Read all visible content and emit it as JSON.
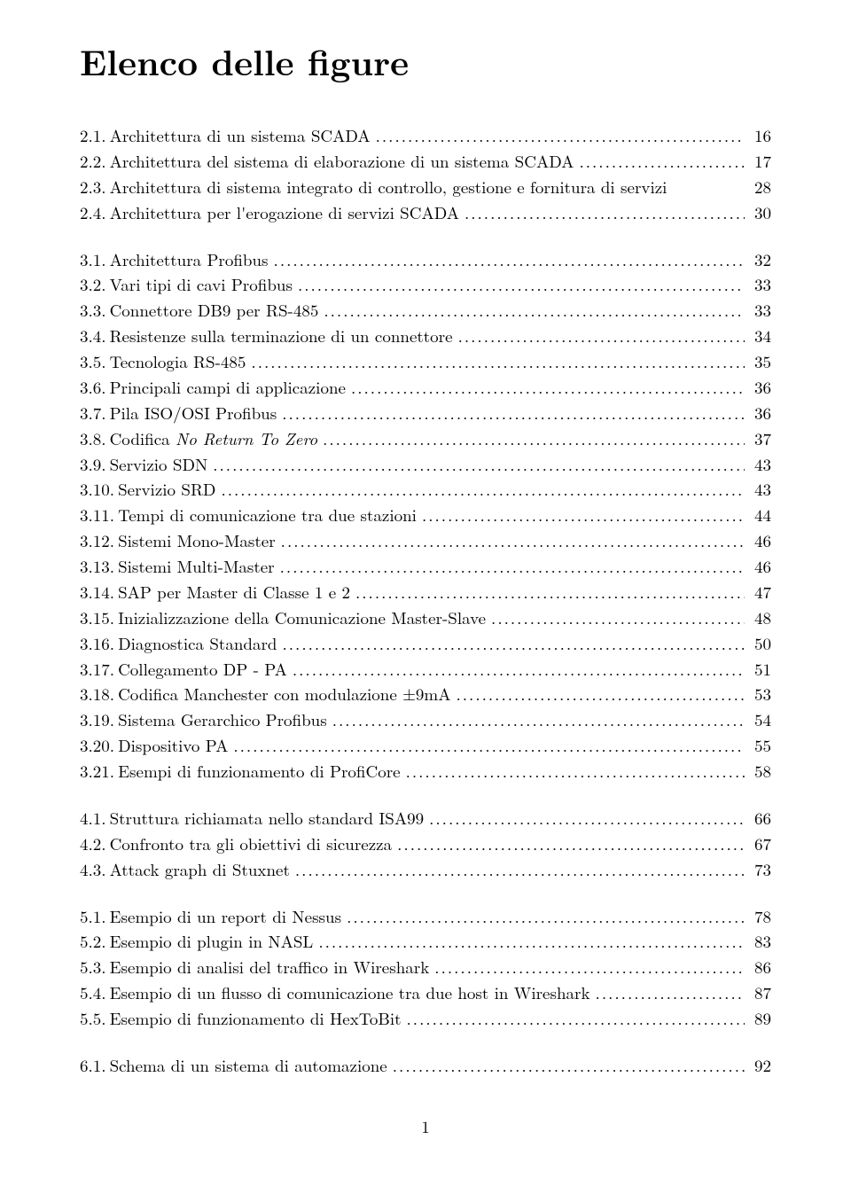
{
  "title": "Elenco delle figure",
  "footer": "1",
  "groups": [
    {
      "entries": [
        {
          "num": "2.1.",
          "label": "Architettura di un sistema SCADA",
          "page": "16"
        },
        {
          "num": "2.2.",
          "label": "Architettura del sistema di elaborazione di un sistema SCADA",
          "page": "17"
        },
        {
          "num": "2.3.",
          "label": "Architettura di sistema integrato di controllo, gestione e fornitura di servizi",
          "page": "28",
          "nodots": true
        },
        {
          "num": "2.4.",
          "label": "Architettura per l'erogazione di servizi SCADA",
          "page": "30"
        }
      ]
    },
    {
      "entries": [
        {
          "num": "3.1.",
          "label": "Architettura Profibus",
          "page": "32"
        },
        {
          "num": "3.2.",
          "label": "Vari tipi di cavi Profibus",
          "page": "33"
        },
        {
          "num": "3.3.",
          "label": "Connettore DB9 per RS-485",
          "page": "33"
        },
        {
          "num": "3.4.",
          "label": "Resistenze sulla terminazione di un connettore",
          "page": "34"
        },
        {
          "num": "3.5.",
          "label": "Tecnologia RS-485",
          "page": "35"
        },
        {
          "num": "3.6.",
          "label": "Principali campi di applicazione",
          "page": "36"
        },
        {
          "num": "3.7.",
          "label": "Pila ISO/OSI Profibus",
          "page": "36"
        },
        {
          "num": "3.8.",
          "label": "Codifica <span class=\"italic\">No Return To Zero</span>",
          "page": "37",
          "html": true
        },
        {
          "num": "3.9.",
          "label": "Servizio SDN",
          "page": "43"
        },
        {
          "num": "3.10.",
          "label": "Servizio SRD",
          "page": "43"
        },
        {
          "num": "3.11.",
          "label": "Tempi di comunicazione tra due stazioni",
          "page": "44"
        },
        {
          "num": "3.12.",
          "label": "Sistemi Mono-Master",
          "page": "46"
        },
        {
          "num": "3.13.",
          "label": "Sistemi Multi-Master",
          "page": "46"
        },
        {
          "num": "3.14.",
          "label": "SAP per Master di Classe 1 e 2",
          "page": "47"
        },
        {
          "num": "3.15.",
          "label": "Inizializzazione della Comunicazione Master-Slave",
          "page": "48"
        },
        {
          "num": "3.16.",
          "label": "Diagnostica Standard",
          "page": "50"
        },
        {
          "num": "3.17.",
          "label": "Collegamento DP - PA",
          "page": "51"
        },
        {
          "num": "3.18.",
          "label": "Codifica Manchester con modulazione ±9mA",
          "page": "53"
        },
        {
          "num": "3.19.",
          "label": "Sistema Gerarchico Profibus",
          "page": "54"
        },
        {
          "num": "3.20.",
          "label": "Dispositivo PA",
          "page": "55"
        },
        {
          "num": "3.21.",
          "label": "Esempi di funzionamento di ProfiCore",
          "page": "58"
        }
      ]
    },
    {
      "entries": [
        {
          "num": "4.1.",
          "label": "Struttura richiamata nello standard ISA99",
          "page": "66"
        },
        {
          "num": "4.2.",
          "label": "Confronto tra gli obiettivi di sicurezza",
          "page": "67"
        },
        {
          "num": "4.3.",
          "label": "Attack graph di Stuxnet",
          "page": "73"
        }
      ]
    },
    {
      "entries": [
        {
          "num": "5.1.",
          "label": "Esempio di un report di Nessus",
          "page": "78"
        },
        {
          "num": "5.2.",
          "label": "Esempio di plugin in NASL",
          "page": "83"
        },
        {
          "num": "5.3.",
          "label": "Esempio di analisi del traffico in Wireshark",
          "page": "86"
        },
        {
          "num": "5.4.",
          "label": "Esempio di un flusso di comunicazione tra due host in Wireshark",
          "page": "87"
        },
        {
          "num": "5.5.",
          "label": "Esempio di funzionamento di HexToBit",
          "page": "89"
        }
      ]
    },
    {
      "entries": [
        {
          "num": "6.1.",
          "label": "Schema di un sistema di automazione",
          "page": "92"
        }
      ]
    }
  ]
}
